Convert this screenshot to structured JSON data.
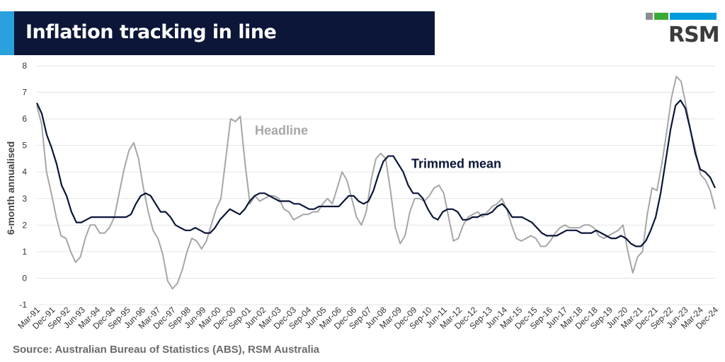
{
  "title": "Inflation tracking in line",
  "logo": {
    "text": "RSM",
    "colors": [
      "#8a8c8e",
      "#3aaa35",
      "#009cde"
    ]
  },
  "source": "Source: Australian Bureau of Statistics (ABS), RSM Australia",
  "colors": {
    "title_bg": "#0b1638",
    "accent": "#2aa0dc",
    "headline": "#a6a6a6",
    "trimmed_mean": "#0b1638"
  },
  "chart_data": {
    "type": "line",
    "title": "Inflation tracking in line",
    "ylabel": "6-month annualised",
    "xlabel": "",
    "ylim": [
      -1,
      8
    ],
    "yticks": [
      -1,
      0,
      1,
      2,
      3,
      4,
      5,
      6,
      7,
      8
    ],
    "grid": true,
    "x_tick_labels": [
      "Mar-91",
      "Dec-91",
      "Sep-92",
      "Jun-93",
      "Mar-94",
      "Dec-94",
      "Sep-95",
      "Jun-96",
      "Mar-97",
      "Dec-97",
      "Sep-98",
      "Jun-99",
      "Mar-00",
      "Dec-00",
      "Sep-01",
      "Jun-02",
      "Mar-03",
      "Dec-03",
      "Sep-04",
      "Jun-05",
      "Mar-06",
      "Dec-06",
      "Sep-07",
      "Jun-08",
      "Mar-09",
      "Dec-09",
      "Sep-10",
      "Jun-11",
      "Mar-12",
      "Dec-12",
      "Sep-13",
      "Jun-14",
      "Mar-15",
      "Dec-15",
      "Sep-16",
      "Jun-17",
      "Mar-18",
      "Dec-18",
      "Sep-19",
      "Jun-20",
      "Mar-21",
      "Dec-21",
      "Sep-22",
      "Jun-23",
      "Mar-24",
      "Dec-24"
    ],
    "series": [
      {
        "name": "Headline",
        "annotation": "Headline",
        "color": "#a6a6a6",
        "values": [
          6.5,
          5.8,
          4.0,
          3.2,
          2.3,
          1.6,
          1.5,
          1.0,
          0.6,
          0.8,
          1.5,
          2.0,
          2.0,
          1.7,
          1.7,
          1.9,
          2.3,
          3.2,
          4.1,
          4.8,
          5.1,
          4.5,
          3.4,
          2.5,
          1.8,
          1.5,
          0.9,
          -0.1,
          -0.4,
          -0.2,
          0.3,
          1.0,
          1.5,
          1.4,
          1.1,
          1.4,
          2.0,
          2.6,
          3.0,
          4.5,
          6.0,
          5.9,
          6.1,
          4.3,
          2.8,
          3.1,
          2.9,
          3.0,
          3.1,
          3.1,
          3.0,
          2.6,
          2.5,
          2.2,
          2.3,
          2.4,
          2.4,
          2.5,
          2.5,
          2.8,
          3.0,
          2.8,
          3.4,
          4.0,
          3.7,
          3.0,
          2.3,
          2.0,
          2.5,
          3.7,
          4.5,
          4.7,
          4.5,
          3.3,
          1.9,
          1.3,
          1.6,
          2.5,
          3.0,
          3.0,
          2.9,
          3.1,
          3.4,
          3.5,
          3.2,
          2.3,
          1.4,
          1.5,
          2.0,
          2.3,
          2.4,
          2.5,
          2.3,
          2.5,
          2.7,
          2.8,
          3.0,
          2.6,
          2.0,
          1.5,
          1.4,
          1.5,
          1.6,
          1.5,
          1.2,
          1.2,
          1.4,
          1.7,
          1.9,
          2.0,
          1.9,
          1.9,
          1.9,
          2.0,
          2.0,
          1.9,
          1.6,
          1.5,
          1.6,
          1.7,
          1.8,
          2.0,
          1.0,
          0.2,
          0.8,
          1.0,
          2.4,
          3.4,
          3.3,
          4.3,
          5.5,
          6.8,
          7.6,
          7.4,
          6.5,
          5.5,
          4.8,
          3.9,
          3.7,
          3.3,
          2.6
        ]
      },
      {
        "name": "Trimmed mean",
        "annotation": "Trimmed mean",
        "color": "#0b1638",
        "values": [
          6.6,
          6.2,
          5.4,
          4.9,
          4.3,
          3.5,
          3.1,
          2.5,
          2.1,
          2.1,
          2.2,
          2.3,
          2.3,
          2.3,
          2.3,
          2.3,
          2.3,
          2.3,
          2.3,
          2.4,
          2.8,
          3.1,
          3.2,
          3.1,
          2.8,
          2.5,
          2.5,
          2.3,
          2.0,
          1.9,
          1.8,
          1.8,
          1.9,
          1.8,
          1.7,
          1.7,
          1.9,
          2.2,
          2.4,
          2.6,
          2.5,
          2.4,
          2.6,
          2.9,
          3.1,
          3.2,
          3.2,
          3.1,
          3.0,
          2.9,
          2.9,
          2.9,
          2.8,
          2.8,
          2.7,
          2.6,
          2.6,
          2.7,
          2.7,
          2.7,
          2.7,
          2.7,
          2.9,
          3.1,
          3.1,
          2.9,
          2.8,
          2.9,
          3.3,
          3.9,
          4.4,
          4.6,
          4.6,
          4.3,
          4.0,
          3.5,
          3.2,
          3.2,
          3.0,
          2.6,
          2.3,
          2.2,
          2.5,
          2.6,
          2.6,
          2.5,
          2.2,
          2.2,
          2.3,
          2.3,
          2.4,
          2.4,
          2.5,
          2.7,
          2.8,
          2.6,
          2.3,
          2.3,
          2.3,
          2.2,
          2.1,
          1.9,
          1.7,
          1.6,
          1.6,
          1.6,
          1.7,
          1.8,
          1.8,
          1.8,
          1.7,
          1.7,
          1.7,
          1.8,
          1.7,
          1.6,
          1.5,
          1.5,
          1.6,
          1.5,
          1.3,
          1.2,
          1.2,
          1.4,
          1.8,
          2.3,
          3.2,
          4.4,
          5.6,
          6.5,
          6.7,
          6.4,
          5.6,
          4.7,
          4.1,
          4.0,
          3.8,
          3.4
        ]
      }
    ]
  }
}
